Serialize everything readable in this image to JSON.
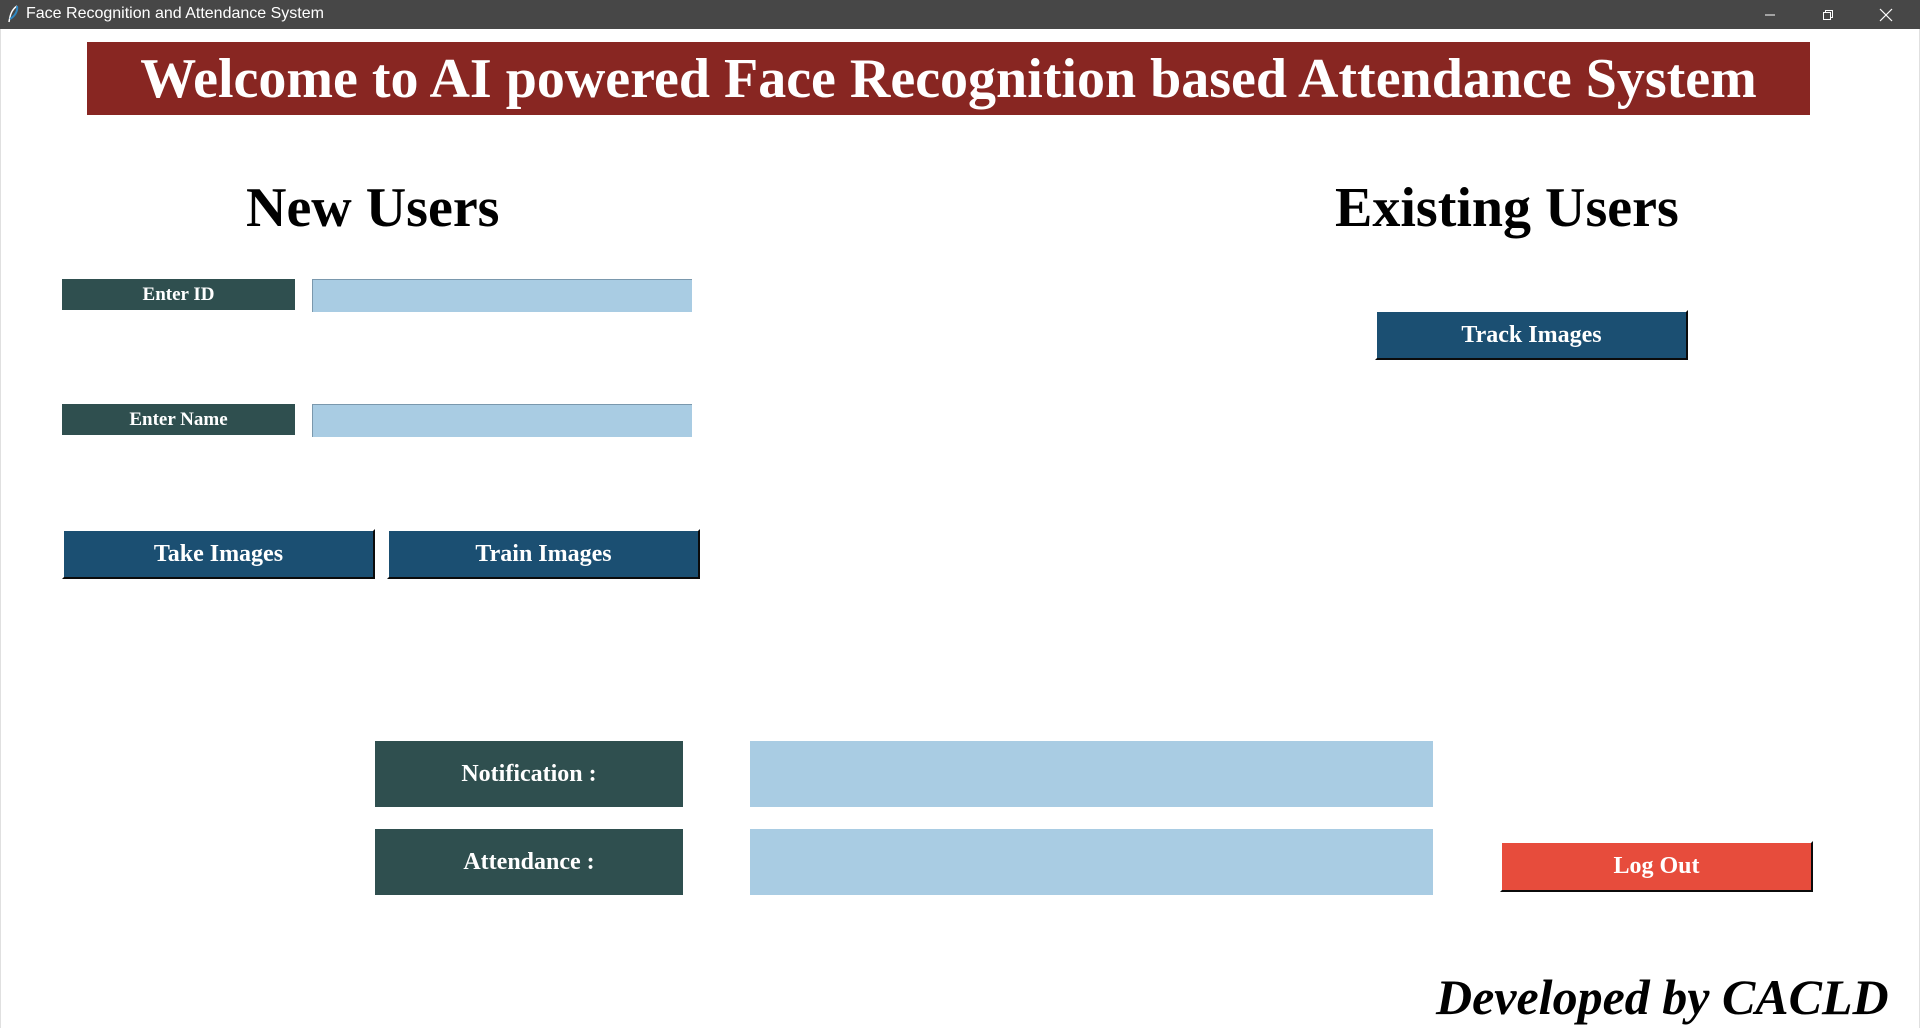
{
  "window": {
    "title": "Face Recognition and Attendance System",
    "app_icon": "feather-icon",
    "controls": {
      "minimize": "minimize-icon",
      "maximize": "restore-icon",
      "close": "close-icon"
    }
  },
  "banner": {
    "text": "Welcome to AI powered Face Recognition based Attendance System",
    "bg": "#882622"
  },
  "new_users": {
    "heading": "New Users",
    "id_label": "Enter ID",
    "id_value": "",
    "name_label": "Enter Name",
    "name_value": "",
    "take_images_button": "Take Images",
    "train_images_button": "Train Images"
  },
  "existing_users": {
    "heading": "Existing Users",
    "track_images_button": "Track Images"
  },
  "status": {
    "notification_label": "Notification :",
    "notification_value": "",
    "attendance_label": "Attendance :",
    "attendance_value": ""
  },
  "logout_button": "Log Out",
  "footer": "Developed by CACLD",
  "colors": {
    "label_bg": "#2f4f4f",
    "button_bg": "#1b4f72",
    "entry_bg": "#a9cce3",
    "logout_bg": "#e74c3c"
  }
}
